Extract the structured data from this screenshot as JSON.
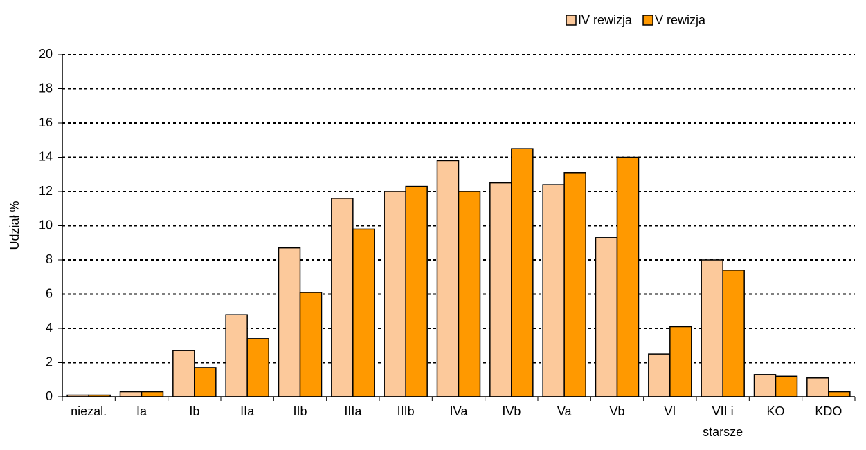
{
  "chart_data": {
    "type": "bar",
    "categories": [
      "niezal.",
      "Ia",
      "Ib",
      "IIa",
      "IIb",
      "IIIa",
      "IIIb",
      "IVa",
      "IVb",
      "Va",
      "Vb",
      "VI",
      "VII i starsze",
      "KO",
      "KDO"
    ],
    "series": [
      {
        "name": "IV rewizja",
        "color": "#fcc99b",
        "values": [
          0.1,
          0.3,
          2.7,
          4.8,
          8.7,
          11.6,
          12.0,
          13.8,
          12.5,
          12.4,
          9.3,
          2.5,
          8.0,
          1.3,
          1.1
        ]
      },
      {
        "name": "V rewizja",
        "color": "#ff9900",
        "values": [
          0.1,
          0.3,
          1.7,
          3.4,
          6.1,
          9.8,
          12.3,
          12.0,
          14.5,
          13.1,
          14.0,
          4.1,
          7.4,
          1.2,
          0.3
        ]
      }
    ],
    "ylabel": "Udział %",
    "ylim": [
      0,
      20
    ],
    "yticks": [
      0,
      2,
      4,
      6,
      8,
      10,
      12,
      14,
      16,
      18,
      20
    ],
    "grid": true,
    "legend": "top-right"
  }
}
